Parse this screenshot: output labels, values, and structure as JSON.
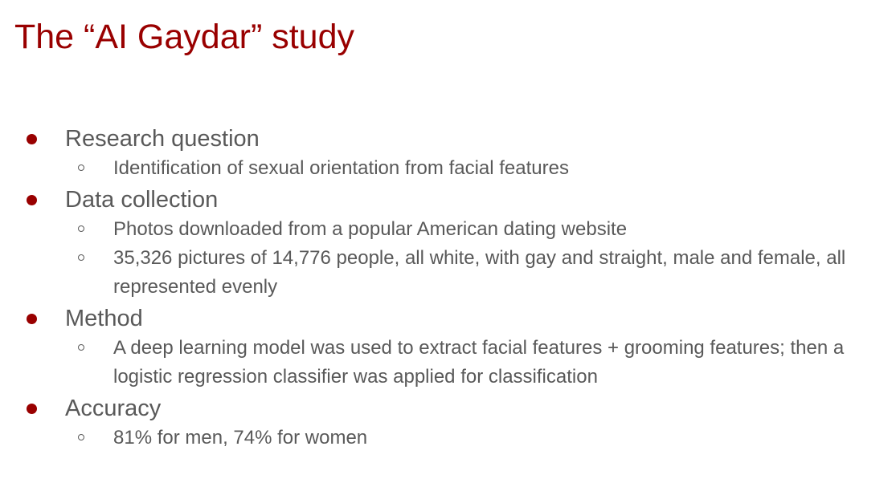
{
  "slide": {
    "title": "The “AI Gaydar” study",
    "colors": {
      "title": "#990000",
      "bullet": "#990000",
      "text": "#595959",
      "background": "#ffffff"
    },
    "sections": [
      {
        "heading": "Research question",
        "items": [
          "Identification of  sexual orientation from facial features"
        ]
      },
      {
        "heading": "Data collection",
        "items": [
          "Photos downloaded from a popular American dating website",
          "35,326 pictures of 14,776 people, all white, with gay and straight, male and female, all represented evenly"
        ]
      },
      {
        "heading": "Method",
        "items": [
          "A deep learning model was used to extract facial features + grooming features; then a logistic regression classifier was applied for classification"
        ]
      },
      {
        "heading": "Accuracy",
        "items": [
          "81% for men,  74% for women"
        ]
      }
    ]
  }
}
